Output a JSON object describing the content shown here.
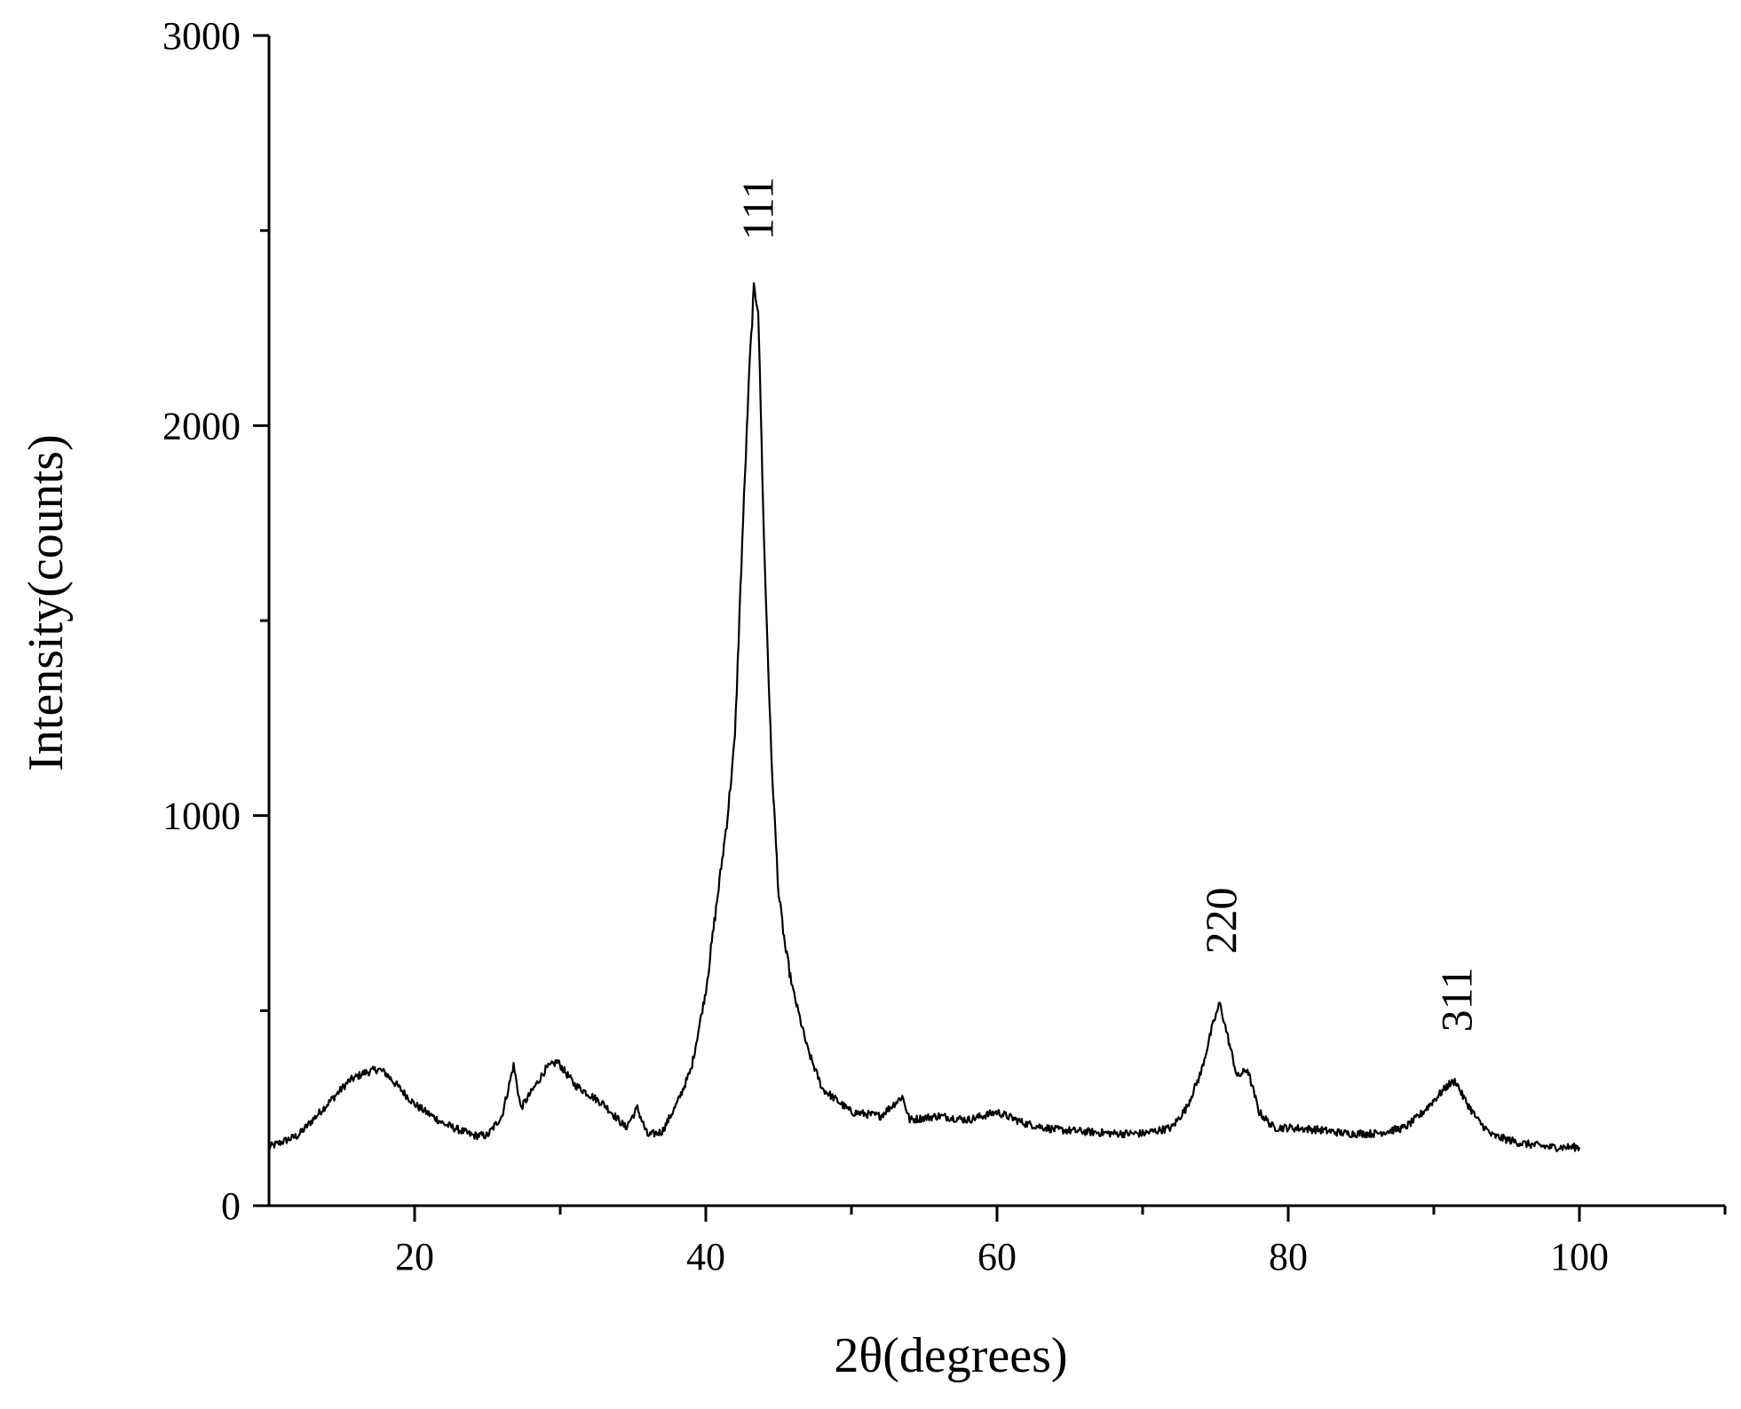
{
  "chart_data": {
    "type": "line",
    "xlabel": "2θ(degrees)",
    "ylabel": "Intensity(counts)",
    "xlim": [
      10,
      110
    ],
    "ylim": [
      0,
      3000
    ],
    "x_ticks": [
      20,
      40,
      60,
      80,
      100
    ],
    "x_tick_labels": [
      "20",
      "40",
      "60",
      "80",
      "100"
    ],
    "x_minor_ticks": [
      30,
      50,
      70,
      90,
      110
    ],
    "y_ticks": [
      0,
      1000,
      2000,
      3000
    ],
    "y_tick_labels": [
      "0",
      "1000",
      "2000",
      "3000"
    ],
    "y_minor_ticks": [
      500,
      1500,
      2500
    ],
    "grid": false,
    "line_color": "#000000",
    "series": [
      {
        "x": [
          10,
          12,
          14,
          15.5,
          16.5,
          17.5,
          18,
          19,
          20,
          22,
          24,
          25,
          26,
          26.8,
          27.3,
          28,
          29,
          29.8,
          31,
          33,
          34.5,
          35.3,
          36,
          37,
          38,
          39,
          40,
          41,
          41.5,
          42,
          42.5,
          43,
          43.3,
          43.6,
          44,
          44.5,
          45,
          45.5,
          46,
          47,
          48,
          49,
          50,
          52,
          53.5,
          54,
          56,
          58,
          60,
          62,
          64,
          66,
          68,
          70,
          72,
          73,
          74,
          74.8,
          75.3,
          75.8,
          76.5,
          77.2,
          78,
          79,
          80,
          82,
          84,
          86,
          88,
          89,
          90,
          91,
          91.5,
          92,
          93,
          94,
          96,
          98,
          100
        ],
        "y": [
          150,
          180,
          260,
          320,
          340,
          350,
          340,
          300,
          260,
          210,
          180,
          180,
          230,
          360,
          250,
          290,
          350,
          370,
          310,
          260,
          200,
          250,
          180,
          190,
          260,
          350,
          550,
          850,
          1000,
          1200,
          1700,
          2150,
          2350,
          2300,
          1700,
          1150,
          800,
          650,
          550,
          400,
          300,
          270,
          240,
          230,
          280,
          220,
          230,
          220,
          240,
          210,
          195,
          190,
          185,
          185,
          200,
          250,
          340,
          460,
          520,
          440,
          330,
          350,
          240,
          200,
          200,
          195,
          185,
          185,
          200,
          230,
          270,
          310,
          320,
          280,
          220,
          180,
          160,
          150,
          150
        ]
      }
    ],
    "annotations": [
      {
        "text": "111",
        "x": 43.5,
        "y": 2350
      },
      {
        "text": "220",
        "x": 75.3,
        "y": 520
      },
      {
        "text": "311",
        "x": 91.5,
        "y": 320
      }
    ]
  }
}
